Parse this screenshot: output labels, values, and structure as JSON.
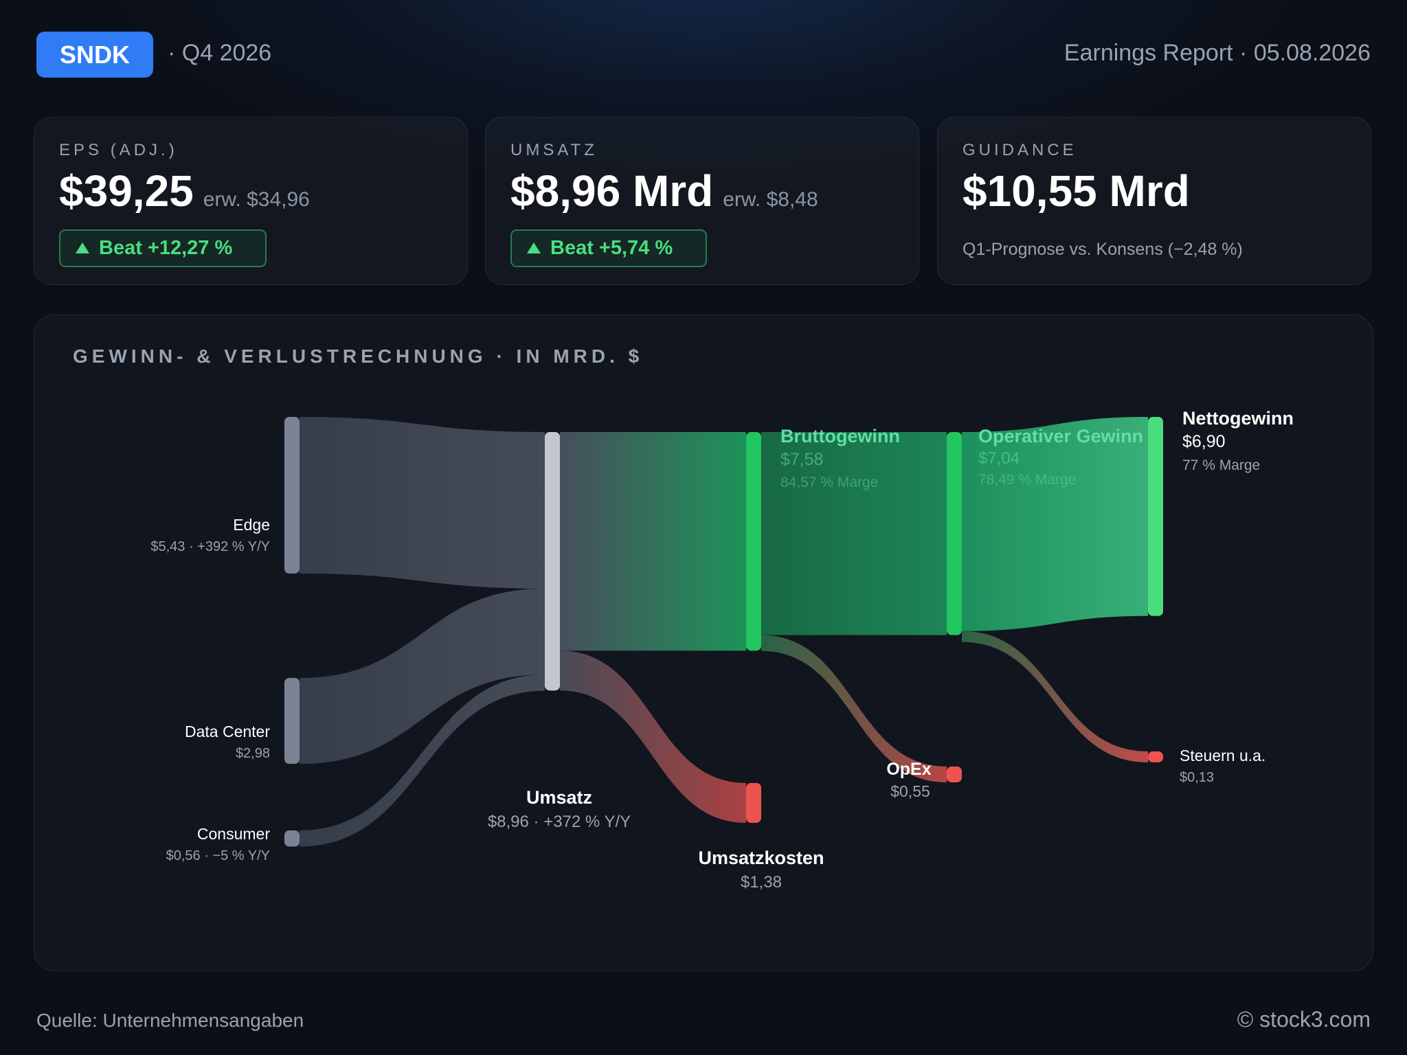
{
  "header": {
    "ticker": "SNDK",
    "quarter": "· Q4 2026",
    "report": "Earnings Report · 05.08.2026"
  },
  "cards": {
    "eps": {
      "label": "EPS (ADJ.)",
      "value": "$39,25",
      "expected": "erw. $34,96",
      "beat": "Beat +12,27 %"
    },
    "revenue": {
      "label": "UMSATZ",
      "value": "$8,96 Mrd",
      "expected": "erw. $8,48",
      "beat": "Beat +5,74 %"
    },
    "guidance": {
      "label": "GUIDANCE",
      "value": "$10,55 Mrd",
      "note": "Q1-Prognose vs. Konsens (−2,48 %)"
    }
  },
  "panel": {
    "title": "GEWINN- & VERLUSTRECHNUNG · IN MRD. $"
  },
  "colors": {
    "accent": "#2f7cf6",
    "positive": "#22c55e",
    "positive_light": "#4ade80",
    "negative": "#ef5350",
    "segment": "#7a8396",
    "revenue_node": "#c3c7d1"
  },
  "chart_data": {
    "type": "sankey",
    "unit": "Mrd. $",
    "nodes": [
      {
        "id": "edge",
        "name": "Edge",
        "value": 5.43,
        "value_label": "$5,43 · +392 % Y/Y"
      },
      {
        "id": "datacenter",
        "name": "Data Center",
        "value": 2.98,
        "value_label": "$2,98"
      },
      {
        "id": "consumer",
        "name": "Consumer",
        "value": 0.56,
        "value_label": "$0,56 · −5 % Y/Y"
      },
      {
        "id": "revenue",
        "name": "Umsatz",
        "value": 8.96,
        "value_label": "$8,96 · +372 % Y/Y"
      },
      {
        "id": "gross",
        "name": "Bruttogewinn",
        "value": 7.58,
        "value_label": "$7,58",
        "sub": "84,57 % Marge"
      },
      {
        "id": "cogs",
        "name": "Umsatzkosten",
        "value": 1.38,
        "value_label": "$1,38"
      },
      {
        "id": "operating",
        "name": "Operativer Gewinn",
        "value": 7.04,
        "value_label": "$7,04",
        "sub": "78,49 % Marge"
      },
      {
        "id": "opex",
        "name": "OpEx",
        "value": 0.55,
        "value_label": "$0,55"
      },
      {
        "id": "net",
        "name": "Nettogewinn",
        "value": 6.9,
        "value_label": "$6,90",
        "sub": "77 % Marge"
      },
      {
        "id": "tax",
        "name": "Steuern u.a.",
        "value": 0.13,
        "value_label": "$0,13"
      }
    ],
    "links": [
      {
        "source": "edge",
        "target": "revenue",
        "value": 5.43
      },
      {
        "source": "datacenter",
        "target": "revenue",
        "value": 2.98
      },
      {
        "source": "consumer",
        "target": "revenue",
        "value": 0.56
      },
      {
        "source": "revenue",
        "target": "gross",
        "value": 7.58
      },
      {
        "source": "revenue",
        "target": "cogs",
        "value": 1.38
      },
      {
        "source": "gross",
        "target": "operating",
        "value": 7.04
      },
      {
        "source": "gross",
        "target": "opex",
        "value": 0.55
      },
      {
        "source": "operating",
        "target": "net",
        "value": 6.9
      },
      {
        "source": "operating",
        "target": "tax",
        "value": 0.13
      }
    ]
  },
  "footer": {
    "source": "Quelle: Unternehmensangaben",
    "copyright": "© stock3.com"
  }
}
